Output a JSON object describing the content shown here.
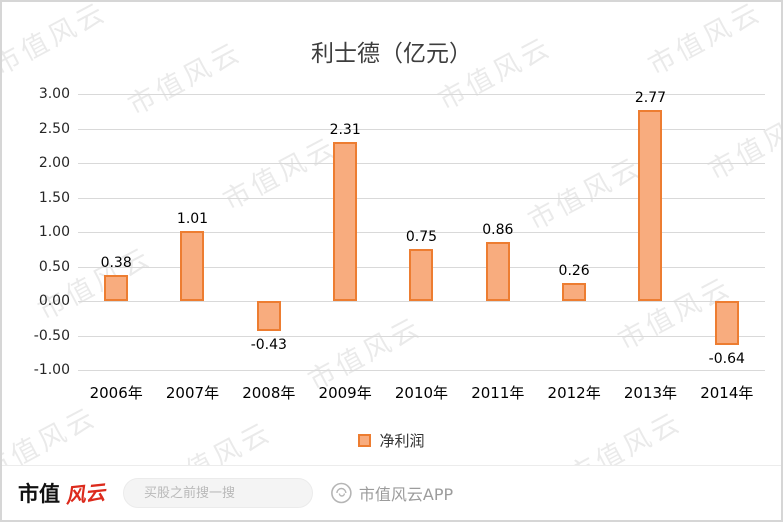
{
  "page": {
    "watermark": "市值风云"
  },
  "chart_data": {
    "type": "bar",
    "title": "利士德（亿元）",
    "categories": [
      "2006年",
      "2007年",
      "2008年",
      "2009年",
      "2010年",
      "2011年",
      "2012年",
      "2013年",
      "2014年"
    ],
    "series": [
      {
        "name": "净利润",
        "values": [
          0.38,
          1.01,
          -0.43,
          2.31,
          0.75,
          0.86,
          0.26,
          2.77,
          -0.64
        ]
      }
    ],
    "ylim": [
      -1.0,
      3.0
    ],
    "yticks": [
      "3.00",
      "2.50",
      "2.00",
      "1.50",
      "1.00",
      "0.50",
      "0.00",
      "-0.50",
      "-1.00"
    ],
    "grid": true,
    "legend_position": "bottom",
    "bar_fill": "#F8AC7E",
    "bar_border": "#ED7D31"
  },
  "footer": {
    "brand_left": "市值",
    "brand_logo": "风云",
    "search_placeholder": "买股之前搜一搜",
    "app_label": "市值风云APP"
  }
}
